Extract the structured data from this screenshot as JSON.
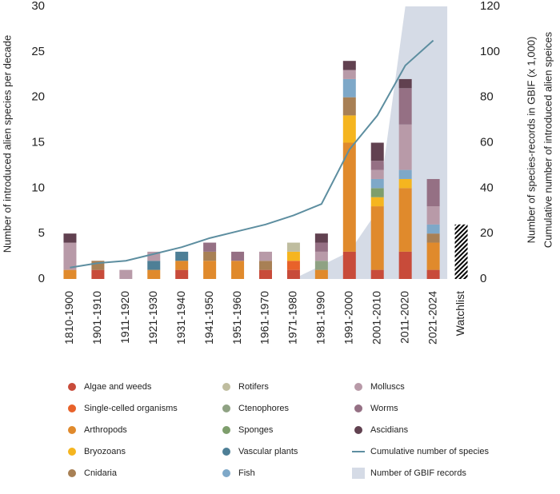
{
  "chart_data": {
    "type": "bar",
    "stacked": true,
    "y_label": "Number of introduced alien species per decade",
    "y2_label": [
      "Number of species-records in GBIF (x 1,000)",
      "Cumulative number of introduced alien speices"
    ],
    "categories": [
      "1810-1900",
      "1901-1910",
      "1911-1920",
      "1921-1930",
      "1931-1940",
      "1941-1950",
      "1951-1960",
      "1961-1970",
      "1971-1980",
      "1981-1990",
      "1991-2000",
      "2001-2010",
      "2011-2020",
      "2021-2024",
      "Watchlist"
    ],
    "hatch_categories": [
      "Watchlist"
    ],
    "ylim": [
      0,
      30
    ],
    "yticks": [
      0,
      5,
      10,
      15,
      20,
      25,
      30
    ],
    "y2lim": [
      0,
      120
    ],
    "y2ticks": [
      0,
      20,
      40,
      60,
      80,
      100,
      120
    ],
    "series": [
      {
        "name": "Algae and weeds",
        "color": "#c84b3a",
        "values": [
          0,
          1,
          0,
          0,
          1,
          0,
          0,
          1,
          1,
          0,
          3,
          1,
          3,
          1,
          1
        ]
      },
      {
        "name": "Single-celled organisms",
        "color": "#e8622a",
        "values": [
          0,
          0,
          0,
          0,
          0,
          0,
          0,
          0,
          1,
          0,
          0,
          0,
          0,
          0,
          0
        ]
      },
      {
        "name": "Arthropods",
        "color": "#e08a2c",
        "values": [
          1,
          0,
          0,
          1,
          1,
          2,
          2,
          0,
          0,
          1,
          12,
          7,
          7,
          3,
          0
        ]
      },
      {
        "name": "Bryozoans",
        "color": "#f5b51f",
        "values": [
          0,
          0,
          0,
          0,
          0,
          0,
          0,
          0,
          1,
          0,
          3,
          1,
          1,
          0,
          0
        ]
      },
      {
        "name": "Cnidaria",
        "color": "#a88055",
        "values": [
          0,
          1,
          0,
          0,
          0,
          1,
          0,
          1,
          0,
          0,
          2,
          0,
          0,
          1,
          0
        ]
      },
      {
        "name": "Rotifers",
        "color": "#bfbd9f",
        "values": [
          0,
          0,
          0,
          0,
          0,
          0,
          0,
          0,
          1,
          0,
          0,
          0,
          0,
          0,
          0
        ]
      },
      {
        "name": "Ctenophores",
        "color": "#8fa283",
        "values": [
          0,
          0,
          0,
          0,
          0,
          0,
          0,
          0,
          0,
          1,
          0,
          0,
          0,
          0,
          0
        ]
      },
      {
        "name": "Sponges",
        "color": "#7e9e6c",
        "values": [
          0,
          0,
          0,
          0,
          0,
          0,
          0,
          0,
          0,
          0,
          0,
          1,
          0,
          0,
          0
        ]
      },
      {
        "name": "Vascular plants",
        "color": "#4e7f96",
        "values": [
          0,
          0,
          0,
          1,
          1,
          0,
          0,
          0,
          0,
          0,
          0,
          0,
          0,
          0,
          0
        ]
      },
      {
        "name": "Fish",
        "color": "#7ea8c8",
        "values": [
          0,
          0,
          0,
          0,
          0,
          0,
          0,
          0,
          0,
          0,
          2,
          1,
          1,
          1,
          0
        ]
      },
      {
        "name": "Molluscs",
        "color": "#b89aa8",
        "values": [
          3,
          0,
          1,
          1,
          0,
          0,
          0,
          1,
          0,
          1,
          1,
          1,
          5,
          2,
          0
        ]
      },
      {
        "name": "Worms",
        "color": "#957084",
        "values": [
          0,
          0,
          0,
          0,
          0,
          1,
          1,
          0,
          0,
          1,
          0,
          1,
          4,
          3,
          5
        ]
      },
      {
        "name": "Ascidians",
        "color": "#614150",
        "values": [
          1,
          0,
          0,
          0,
          0,
          0,
          0,
          0,
          0,
          1,
          1,
          2,
          1,
          0,
          0
        ]
      },
      {
        "name": "Cumulative number of species",
        "type": "line",
        "axis": "y2",
        "color": "#5d8ea0",
        "values": [
          5,
          7,
          8,
          11,
          14,
          18,
          21,
          24,
          28,
          33,
          57,
          72,
          94,
          105,
          null
        ]
      },
      {
        "name": "Number of GBIF records",
        "type": "area",
        "axis": "y2",
        "color": "#d5dbe6",
        "values": [
          null,
          null,
          null,
          null,
          null,
          null,
          null,
          null,
          0,
          6,
          12,
          30,
          120,
          120,
          null
        ]
      }
    ]
  }
}
